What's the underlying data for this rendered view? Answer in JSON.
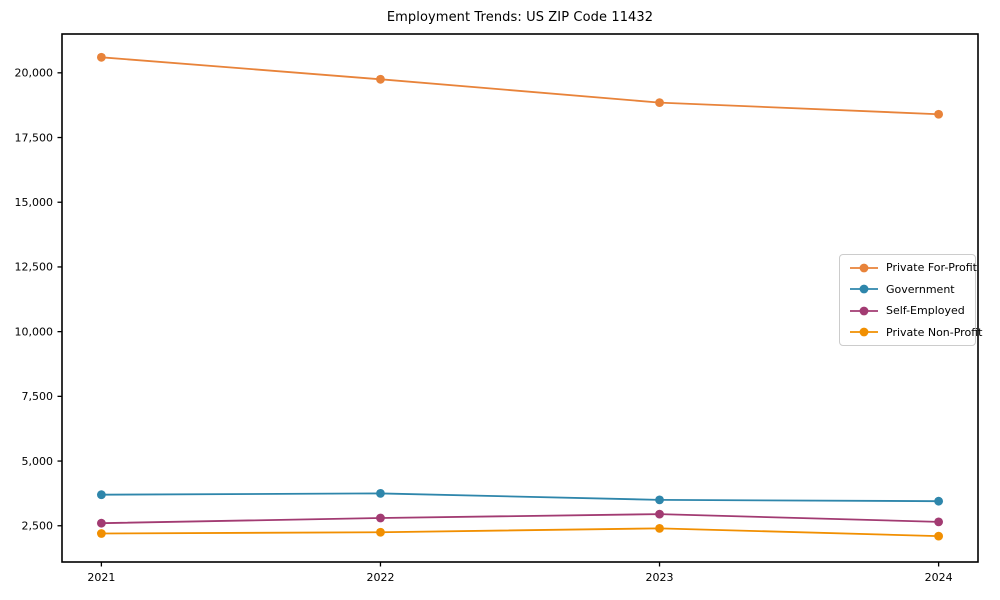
{
  "chart_data": {
    "type": "line",
    "title": "Employment Trends: US ZIP Code 11432",
    "categories": [
      "2021",
      "2022",
      "2023",
      "2024"
    ],
    "series": [
      {
        "name": "Private For-Profit",
        "color": "#E8833A",
        "values": [
          20600,
          19750,
          18850,
          18400
        ]
      },
      {
        "name": "Government",
        "color": "#2E86AB",
        "values": [
          3700,
          3750,
          3500,
          3450
        ]
      },
      {
        "name": "Self-Employed",
        "color": "#A23B72",
        "values": [
          2600,
          2800,
          2950,
          2650
        ]
      },
      {
        "name": "Private Non-Profit",
        "color": "#F18F01",
        "values": [
          2200,
          2250,
          2400,
          2100
        ]
      }
    ],
    "xlabel": "",
    "ylabel": "",
    "ylim": [
      1100,
      21500
    ],
    "yticks": [
      {
        "value": 2500,
        "label": "2,500"
      },
      {
        "value": 5000,
        "label": "5,000"
      },
      {
        "value": 7500,
        "label": "7,500"
      },
      {
        "value": 10000,
        "label": "10,000"
      },
      {
        "value": 12500,
        "label": "12,500"
      },
      {
        "value": 15000,
        "label": "15,000"
      },
      {
        "value": 17500,
        "label": "17,500"
      },
      {
        "value": 20000,
        "label": "20,000"
      }
    ],
    "grid": false,
    "legend_position": "center right",
    "axis_color": "#000000",
    "background": "#ffffff"
  }
}
